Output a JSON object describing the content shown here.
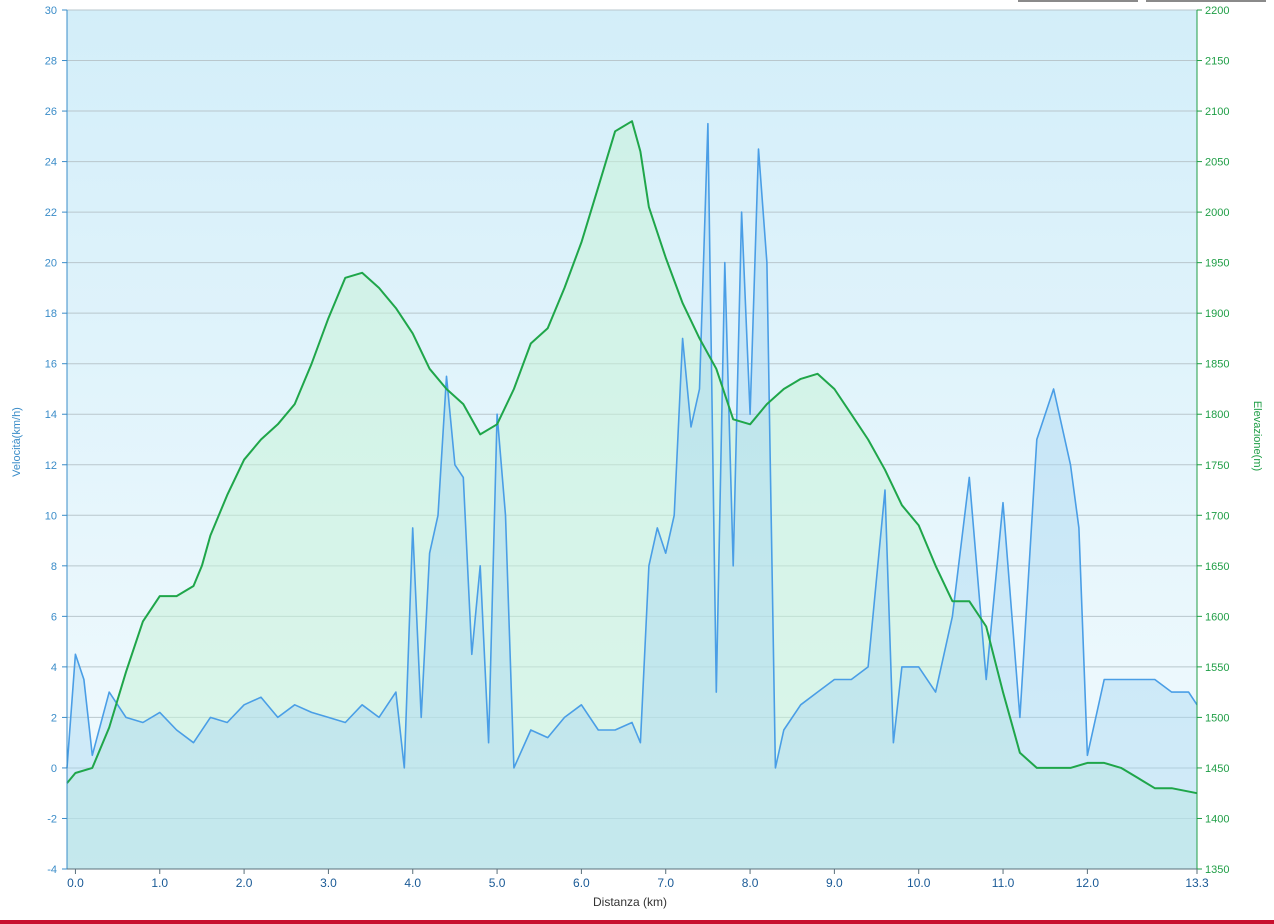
{
  "window": {
    "accent_color": "#c8102e"
  },
  "chart_data": {
    "type": "line",
    "xlabel": "Distanza  (km)",
    "ylabel_left": "Velocità(km/h)",
    "ylabel_right": "Elevazione(m)",
    "xlim": [
      -0.1,
      13.3
    ],
    "ylim_left": [
      -4,
      30
    ],
    "ylim_right": [
      1350,
      2200
    ],
    "x_ticks": [
      0.0,
      1.0,
      2.0,
      3.0,
      4.0,
      5.0,
      6.0,
      7.0,
      8.0,
      9.0,
      10.0,
      11.0,
      12.0,
      13.3
    ],
    "x_tick_labels": [
      "0.0",
      "1.0",
      "2.0",
      "3.0",
      "4.0",
      "5.0",
      "6.0",
      "7.0",
      "8.0",
      "9.0",
      "10.0",
      "11.0",
      "12.0",
      "13.3"
    ],
    "y_ticks_left": [
      -4,
      -2,
      0,
      2,
      4,
      6,
      8,
      10,
      12,
      14,
      16,
      18,
      20,
      22,
      24,
      26,
      28,
      30
    ],
    "y_ticks_right": [
      1350,
      1400,
      1450,
      1500,
      1550,
      1600,
      1650,
      1700,
      1750,
      1800,
      1850,
      1900,
      1950,
      2000,
      2050,
      2100,
      2150,
      2200
    ],
    "grid": true,
    "series": [
      {
        "name": "Elevazione(m)",
        "axis": "right",
        "color": "#1fa64a",
        "x": [
          -0.1,
          0.0,
          0.2,
          0.4,
          0.6,
          0.8,
          1.0,
          1.2,
          1.4,
          1.5,
          1.6,
          1.8,
          2.0,
          2.2,
          2.4,
          2.6,
          2.8,
          3.0,
          3.2,
          3.4,
          3.6,
          3.8,
          4.0,
          4.2,
          4.4,
          4.6,
          4.8,
          5.0,
          5.2,
          5.4,
          5.6,
          5.8,
          6.0,
          6.2,
          6.4,
          6.6,
          6.7,
          6.8,
          7.0,
          7.2,
          7.4,
          7.6,
          7.8,
          8.0,
          8.2,
          8.4,
          8.6,
          8.8,
          9.0,
          9.2,
          9.4,
          9.6,
          9.8,
          10.0,
          10.2,
          10.4,
          10.6,
          10.8,
          11.0,
          11.2,
          11.4,
          11.6,
          11.8,
          12.0,
          12.2,
          12.4,
          12.6,
          12.8,
          13.0,
          13.3
        ],
        "values": [
          1435,
          1445,
          1450,
          1490,
          1545,
          1595,
          1620,
          1620,
          1630,
          1650,
          1680,
          1720,
          1755,
          1775,
          1790,
          1810,
          1850,
          1895,
          1935,
          1940,
          1925,
          1905,
          1880,
          1845,
          1825,
          1810,
          1780,
          1790,
          1825,
          1870,
          1885,
          1925,
          1970,
          2025,
          2080,
          2090,
          2060,
          2005,
          1955,
          1910,
          1875,
          1845,
          1795,
          1790,
          1810,
          1825,
          1835,
          1840,
          1825,
          1800,
          1775,
          1745,
          1710,
          1690,
          1650,
          1615,
          1615,
          1590,
          1525,
          1465,
          1450,
          1450,
          1450,
          1455,
          1455,
          1450,
          1440,
          1430,
          1430,
          1425
        ]
      },
      {
        "name": "Velocità(km/h)",
        "axis": "left",
        "color": "#4a9ee6",
        "x": [
          -0.1,
          0.0,
          0.1,
          0.2,
          0.4,
          0.6,
          0.8,
          1.0,
          1.2,
          1.4,
          1.6,
          1.8,
          2.0,
          2.2,
          2.4,
          2.6,
          2.8,
          3.0,
          3.2,
          3.4,
          3.6,
          3.8,
          3.9,
          4.0,
          4.1,
          4.2,
          4.3,
          4.4,
          4.5,
          4.6,
          4.7,
          4.8,
          4.9,
          5.0,
          5.1,
          5.2,
          5.4,
          5.6,
          5.8,
          6.0,
          6.2,
          6.4,
          6.6,
          6.7,
          6.8,
          6.9,
          7.0,
          7.1,
          7.2,
          7.3,
          7.4,
          7.5,
          7.6,
          7.7,
          7.8,
          7.9,
          8.0,
          8.1,
          8.2,
          8.3,
          8.4,
          8.6,
          8.8,
          9.0,
          9.2,
          9.4,
          9.6,
          9.7,
          9.8,
          10.0,
          10.2,
          10.4,
          10.6,
          10.8,
          11.0,
          11.2,
          11.4,
          11.6,
          11.8,
          11.9,
          12.0,
          12.2,
          12.4,
          12.6,
          12.8,
          13.0,
          13.2,
          13.3
        ],
        "values": [
          0,
          4.5,
          3.5,
          0.5,
          3.0,
          2.0,
          1.8,
          2.2,
          1.5,
          1.0,
          2.0,
          1.8,
          2.5,
          2.8,
          2.0,
          2.5,
          2.2,
          2.0,
          1.8,
          2.5,
          2.0,
          3.0,
          0,
          9.5,
          2.0,
          8.5,
          10.0,
          15.5,
          12.0,
          11.5,
          4.5,
          8.0,
          1.0,
          14.0,
          10.0,
          0,
          1.5,
          1.2,
          2.0,
          2.5,
          1.5,
          1.5,
          1.8,
          1.0,
          8.0,
          9.5,
          8.5,
          10.0,
          17.0,
          13.5,
          15.0,
          25.5,
          3.0,
          20.0,
          8.0,
          22.0,
          14.0,
          24.5,
          20.0,
          0,
          1.5,
          2.5,
          3.0,
          3.5,
          3.5,
          4.0,
          11.0,
          1.0,
          4.0,
          4.0,
          3.0,
          6.0,
          11.5,
          3.5,
          10.5,
          2.0,
          13.0,
          15.0,
          12.0,
          9.5,
          0.5,
          3.5,
          3.5,
          3.5,
          3.5,
          3.0,
          3.0,
          2.5
        ]
      }
    ]
  }
}
